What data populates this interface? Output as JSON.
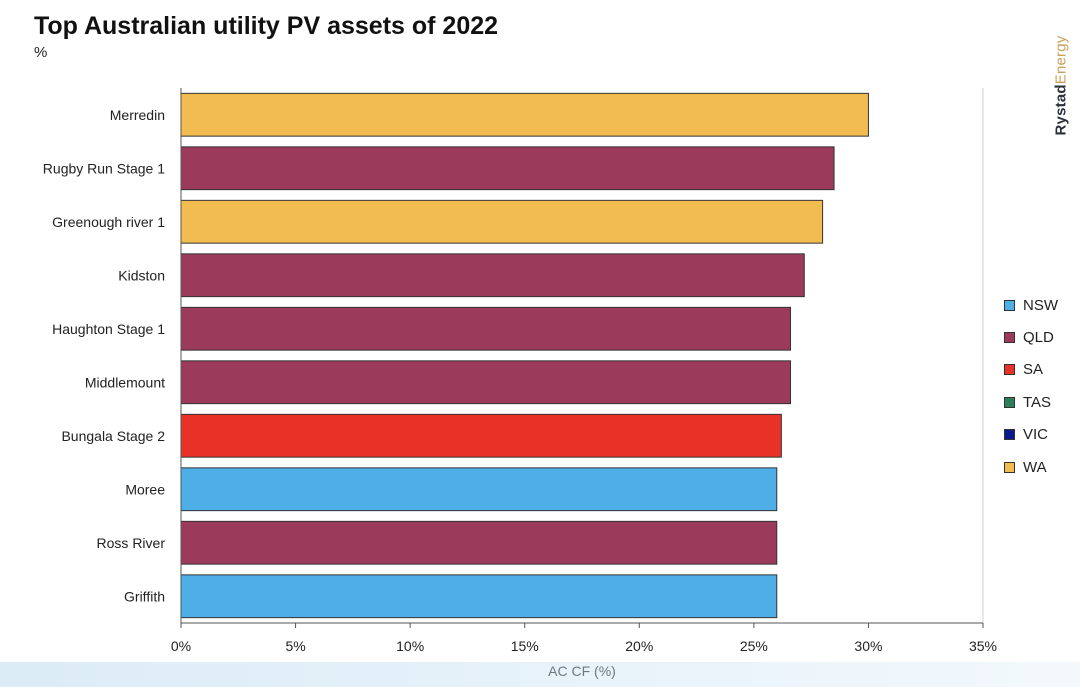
{
  "header": {
    "title": "Top Australian utility PV assets of 2022",
    "subtitle": "%"
  },
  "brand": {
    "part1": "Rystad",
    "part2": "Energy"
  },
  "colors": {
    "NSW": "#4daee8",
    "QLD": "#9b3a5a",
    "SA": "#e83228",
    "TAS": "#2e7d5b",
    "VIC": "#0a1a8a",
    "WA": "#f2bc50"
  },
  "legend": [
    {
      "label": "NSW",
      "color": "#4daee8"
    },
    {
      "label": "QLD",
      "color": "#9b3a5a"
    },
    {
      "label": "SA",
      "color": "#e83228"
    },
    {
      "label": "TAS",
      "color": "#2e7d5b"
    },
    {
      "label": "VIC",
      "color": "#0a1a8a"
    },
    {
      "label": "WA",
      "color": "#f2bc50"
    }
  ],
  "chart_data": {
    "type": "bar",
    "orientation": "horizontal",
    "title": "Top Australian utility PV assets of 2022",
    "subtitle": "%",
    "xlabel": "AC CF (%)",
    "ylabel": "",
    "xlim": [
      0,
      35
    ],
    "x_ticks": [
      "0%",
      "5%",
      "10%",
      "15%",
      "20%",
      "25%",
      "30%",
      "35%"
    ],
    "grid": false,
    "legend_position": "right",
    "categories": [
      "Merredin",
      "Rugby Run Stage 1",
      "Greenough river 1",
      "Kidston",
      "Haughton Stage 1",
      "Middlemount",
      "Bungala Stage 2",
      "Moree",
      "Ross River",
      "Griffith"
    ],
    "values": [
      30.0,
      28.5,
      28.0,
      27.2,
      26.6,
      26.6,
      26.2,
      26.0,
      26.0,
      26.0
    ],
    "state": [
      "WA",
      "QLD",
      "WA",
      "QLD",
      "QLD",
      "QLD",
      "SA",
      "NSW",
      "QLD",
      "NSW"
    ]
  }
}
